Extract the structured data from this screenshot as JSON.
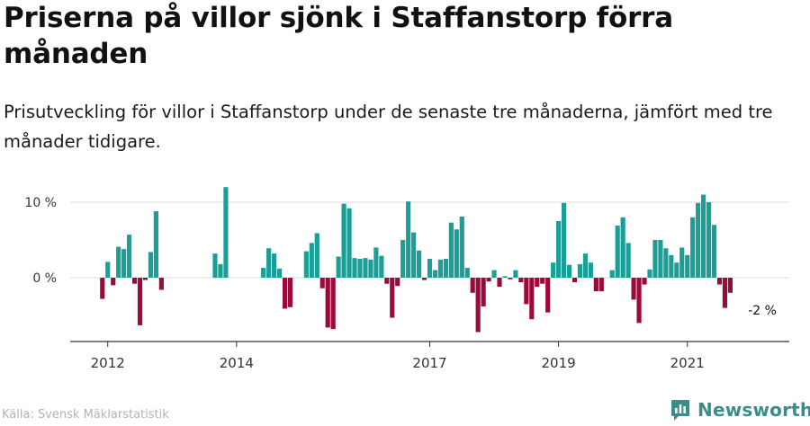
{
  "header": {
    "title": "Priserna på villor sjönk i Staffanstorp förra månaden",
    "subtitle": "Prisutveckling för villor i Staffanstorp under de senaste tre månaderna, jämfört med tre månader tidigare."
  },
  "footer": {
    "source": "Källa: Svensk Mäklarstatistik",
    "brand": "Newsworthy"
  },
  "colors": {
    "positive": "#1a9e96",
    "negative": "#9b0a3c",
    "axis": "#333333",
    "grid": "#dddddd",
    "brand": "#3c8c8a"
  },
  "chart_data": {
    "type": "bar",
    "y_unit": "%",
    "ylim": [
      -9,
      13
    ],
    "y_ticks": [
      {
        "value": 0,
        "label": "0 %"
      },
      {
        "value": 10,
        "label": "10 %"
      }
    ],
    "x_range": [
      "2011-06",
      "2022-08"
    ],
    "x_ticks": [
      {
        "date": "2012-01",
        "label": "2012"
      },
      {
        "date": "2014-01",
        "label": "2014"
      },
      {
        "date": "2017-01",
        "label": "2017"
      },
      {
        "date": "2019-01",
        "label": "2019"
      },
      {
        "date": "2021-01",
        "label": "2021"
      }
    ],
    "annotation": {
      "date": "2022-01",
      "text": "-2 %"
    },
    "series": [
      {
        "data": [
          {
            "date": "2011-12",
            "value": -2.8
          },
          {
            "date": "2012-01",
            "value": 2.1
          },
          {
            "date": "2012-02",
            "value": -1.0
          },
          {
            "date": "2012-03",
            "value": 4.1
          },
          {
            "date": "2012-04",
            "value": 3.8
          },
          {
            "date": "2012-05",
            "value": 5.7
          },
          {
            "date": "2012-06",
            "value": -0.8
          },
          {
            "date": "2012-07",
            "value": -6.3
          },
          {
            "date": "2012-08",
            "value": -0.3
          },
          {
            "date": "2012-09",
            "value": 3.4
          },
          {
            "date": "2012-10",
            "value": 8.8
          },
          {
            "date": "2012-11",
            "value": -1.6
          },
          {
            "date": "2013-09",
            "value": 3.2
          },
          {
            "date": "2013-10",
            "value": 1.8
          },
          {
            "date": "2013-11",
            "value": 12.0
          },
          {
            "date": "2014-06",
            "value": 1.3
          },
          {
            "date": "2014-07",
            "value": 3.9
          },
          {
            "date": "2014-08",
            "value": 3.2
          },
          {
            "date": "2014-09",
            "value": 1.2
          },
          {
            "date": "2014-10",
            "value": -4.1
          },
          {
            "date": "2014-11",
            "value": -3.9
          },
          {
            "date": "2015-02",
            "value": 3.5
          },
          {
            "date": "2015-03",
            "value": 4.6
          },
          {
            "date": "2015-04",
            "value": 5.9
          },
          {
            "date": "2015-05",
            "value": -1.4
          },
          {
            "date": "2015-06",
            "value": -6.6
          },
          {
            "date": "2015-07",
            "value": -6.8
          },
          {
            "date": "2015-08",
            "value": 2.8
          },
          {
            "date": "2015-09",
            "value": 9.8
          },
          {
            "date": "2015-10",
            "value": 9.2
          },
          {
            "date": "2015-11",
            "value": 2.6
          },
          {
            "date": "2015-12",
            "value": 2.5
          },
          {
            "date": "2016-01",
            "value": 2.6
          },
          {
            "date": "2016-02",
            "value": 2.4
          },
          {
            "date": "2016-03",
            "value": 4.0
          },
          {
            "date": "2016-04",
            "value": 2.9
          },
          {
            "date": "2016-05",
            "value": -0.8
          },
          {
            "date": "2016-06",
            "value": -5.3
          },
          {
            "date": "2016-07",
            "value": -1.1
          },
          {
            "date": "2016-08",
            "value": 5.0
          },
          {
            "date": "2016-09",
            "value": 10.1
          },
          {
            "date": "2016-10",
            "value": 6.0
          },
          {
            "date": "2016-11",
            "value": 3.6
          },
          {
            "date": "2016-12",
            "value": -0.3
          },
          {
            "date": "2017-01",
            "value": 2.5
          },
          {
            "date": "2017-02",
            "value": 1.0
          },
          {
            "date": "2017-03",
            "value": 2.4
          },
          {
            "date": "2017-04",
            "value": 2.5
          },
          {
            "date": "2017-05",
            "value": 7.3
          },
          {
            "date": "2017-06",
            "value": 6.4
          },
          {
            "date": "2017-07",
            "value": 8.1
          },
          {
            "date": "2017-08",
            "value": 1.3
          },
          {
            "date": "2017-09",
            "value": -2.0
          },
          {
            "date": "2017-10",
            "value": -7.2
          },
          {
            "date": "2017-11",
            "value": -3.8
          },
          {
            "date": "2017-12",
            "value": -0.5
          },
          {
            "date": "2018-01",
            "value": 1.0
          },
          {
            "date": "2018-02",
            "value": -1.2
          },
          {
            "date": "2018-03",
            "value": 0.2
          },
          {
            "date": "2018-04",
            "value": -0.2
          },
          {
            "date": "2018-05",
            "value": 1.0
          },
          {
            "date": "2018-06",
            "value": -0.6
          },
          {
            "date": "2018-07",
            "value": -3.5
          },
          {
            "date": "2018-08",
            "value": -5.5
          },
          {
            "date": "2018-09",
            "value": -1.2
          },
          {
            "date": "2018-10",
            "value": -0.8
          },
          {
            "date": "2018-11",
            "value": -4.6
          },
          {
            "date": "2018-12",
            "value": 2.0
          },
          {
            "date": "2019-01",
            "value": 7.5
          },
          {
            "date": "2019-02",
            "value": 9.9
          },
          {
            "date": "2019-03",
            "value": 1.7
          },
          {
            "date": "2019-04",
            "value": -0.6
          },
          {
            "date": "2019-05",
            "value": 1.8
          },
          {
            "date": "2019-06",
            "value": 3.2
          },
          {
            "date": "2019-07",
            "value": 2.0
          },
          {
            "date": "2019-08",
            "value": -1.8
          },
          {
            "date": "2019-09",
            "value": -1.8
          },
          {
            "date": "2019-11",
            "value": 1.0
          },
          {
            "date": "2019-12",
            "value": 6.9
          },
          {
            "date": "2020-01",
            "value": 8.0
          },
          {
            "date": "2020-02",
            "value": 4.6
          },
          {
            "date": "2020-03",
            "value": -2.9
          },
          {
            "date": "2020-04",
            "value": -6.0
          },
          {
            "date": "2020-05",
            "value": -0.9
          },
          {
            "date": "2020-06",
            "value": 1.1
          },
          {
            "date": "2020-07",
            "value": 5.0
          },
          {
            "date": "2020-08",
            "value": 5.0
          },
          {
            "date": "2020-09",
            "value": 3.9
          },
          {
            "date": "2020-10",
            "value": 3.0
          },
          {
            "date": "2020-11",
            "value": 2.0
          },
          {
            "date": "2020-12",
            "value": 4.0
          },
          {
            "date": "2021-01",
            "value": 3.0
          },
          {
            "date": "2021-02",
            "value": 8.0
          },
          {
            "date": "2021-03",
            "value": 9.9
          },
          {
            "date": "2021-04",
            "value": 11.0
          },
          {
            "date": "2021-05",
            "value": 10.0
          },
          {
            "date": "2021-06",
            "value": 7.0
          },
          {
            "date": "2021-07",
            "value": -0.9
          },
          {
            "date": "2021-08",
            "value": -4.0
          },
          {
            "date": "2021-09",
            "value": -2.0
          }
        ]
      }
    ]
  }
}
